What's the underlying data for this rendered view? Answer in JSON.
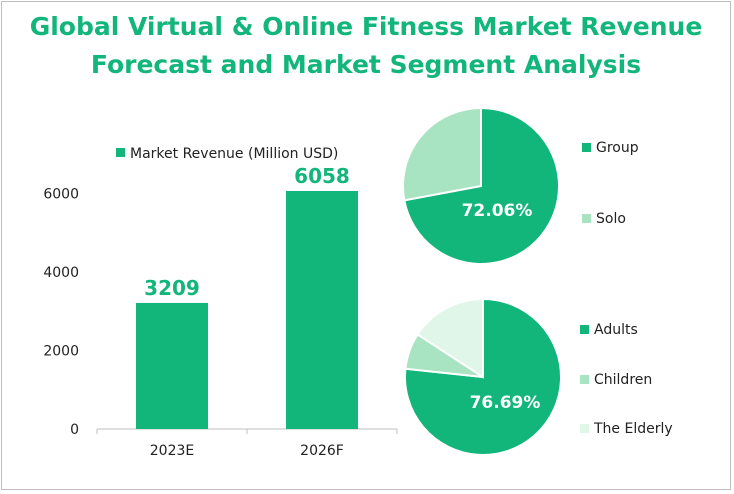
{
  "title_line1": "Global Virtual & Online Fitness Market Revenue",
  "title_line2": "Forecast and Market Segment Analysis",
  "colors": {
    "primary": "#12b57a",
    "light": "#a8e3c2",
    "lighter": "#dff6e8"
  },
  "chart_data": [
    {
      "type": "bar",
      "categories": [
        "2023E",
        "2026F"
      ],
      "series": [
        {
          "name": "Market Revenue (Million USD)",
          "values": [
            3209,
            6058
          ]
        }
      ],
      "data_labels": [
        "3209",
        "6058"
      ],
      "ylim": [
        0,
        7000
      ],
      "yticks": [
        0,
        2000,
        4000,
        6000
      ],
      "legend": "top"
    },
    {
      "type": "pie",
      "labels": [
        "Group",
        "Solo"
      ],
      "values": [
        72.06,
        27.94
      ],
      "shown_label": "72.06%",
      "legend": "right"
    },
    {
      "type": "pie",
      "labels": [
        "Adults",
        "Children",
        "The Elderly"
      ],
      "values": [
        76.69,
        7.5,
        15.81
      ],
      "shown_label": "76.69%",
      "legend": "right"
    }
  ]
}
